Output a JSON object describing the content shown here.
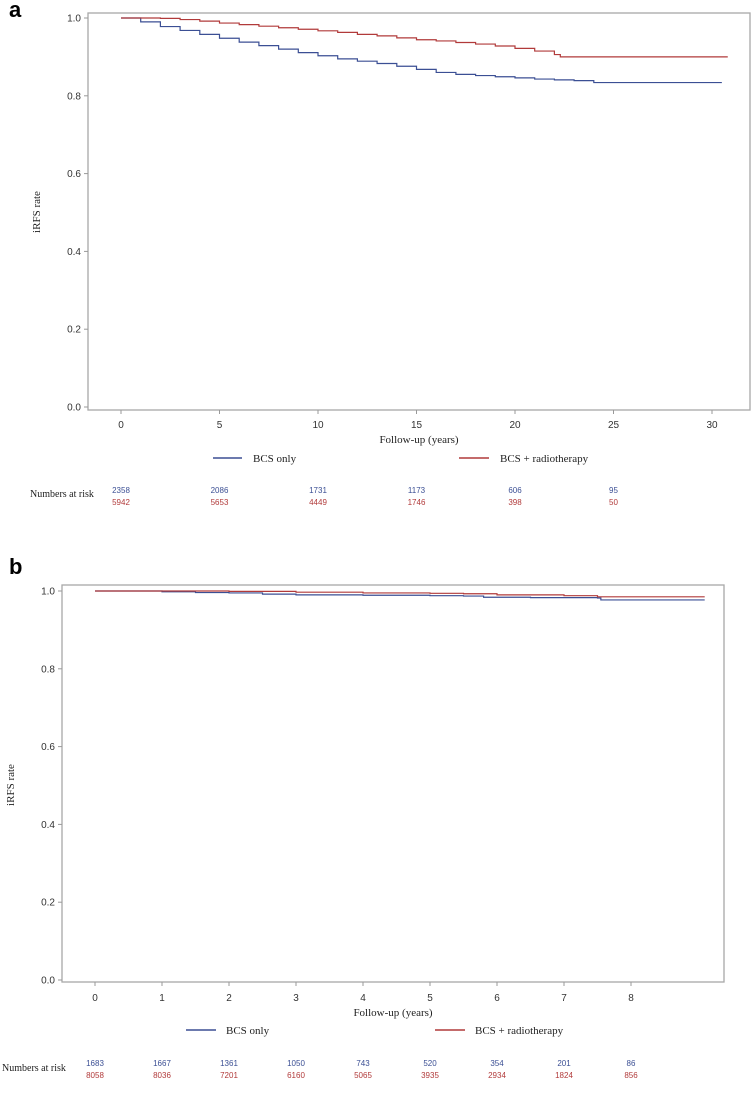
{
  "colors": {
    "bcs_only": "#3b4f94",
    "bcs_radiotherapy": "#b13a3a",
    "frame": "#a8a8a8",
    "tick": "#999999"
  },
  "panels": [
    {
      "label": "a"
    },
    {
      "label": "b"
    }
  ],
  "chart_data": [
    {
      "type": "line",
      "panel": "a",
      "title": "",
      "xlabel": "Follow-up (years)",
      "ylabel": "iRFS rate",
      "xticks": [
        0,
        5,
        10,
        15,
        20,
        25,
        30
      ],
      "yticks": [
        "0.0",
        "0.2",
        "0.4",
        "0.6",
        "0.8",
        "1.0"
      ],
      "ylim": [
        0,
        1
      ],
      "xlim": [
        -1.7,
        32.2
      ],
      "grid": false,
      "legend": [
        "BCS only",
        "BCS + radiotherapy"
      ],
      "legend_position": "bottom",
      "series": [
        {
          "name": "BCS only",
          "x": [
            0,
            1,
            2,
            3,
            4,
            5,
            6,
            7,
            8,
            9,
            10,
            11,
            12,
            13,
            14,
            15,
            16,
            17,
            18,
            19,
            20,
            21,
            22,
            23,
            24,
            25,
            30.5
          ],
          "y": [
            1.0,
            0.99,
            0.978,
            0.968,
            0.958,
            0.948,
            0.938,
            0.929,
            0.92,
            0.911,
            0.903,
            0.895,
            0.889,
            0.883,
            0.876,
            0.868,
            0.86,
            0.855,
            0.852,
            0.849,
            0.846,
            0.843,
            0.841,
            0.839,
            0.834,
            0.834,
            0.834
          ]
        },
        {
          "name": "BCS + radiotherapy",
          "x": [
            0,
            1,
            2,
            3,
            4,
            5,
            6,
            7,
            8,
            9,
            10,
            11,
            12,
            13,
            14,
            15,
            16,
            17,
            18,
            19,
            20,
            21,
            22,
            22.3,
            25,
            30.8
          ],
          "y": [
            1.0,
            1.0,
            0.999,
            0.996,
            0.992,
            0.987,
            0.983,
            0.979,
            0.975,
            0.971,
            0.967,
            0.963,
            0.958,
            0.954,
            0.949,
            0.944,
            0.941,
            0.937,
            0.933,
            0.928,
            0.922,
            0.915,
            0.906,
            0.9,
            0.9,
            0.9
          ]
        }
      ],
      "numbers_at_risk": {
        "label": "Numbers at risk",
        "x": [
          0,
          5,
          10,
          15,
          20,
          25
        ],
        "BCS only": [
          "2358",
          "2086",
          "1731",
          "1173",
          "606",
          "95"
        ],
        "BCS + radiotherapy": [
          "5942",
          "5653",
          "4449",
          "1746",
          "398",
          "50"
        ]
      }
    },
    {
      "type": "line",
      "panel": "b",
      "title": "",
      "xlabel": "Follow-up (years)",
      "ylabel": "iRFS rate",
      "xticks": [
        0,
        1,
        2,
        3,
        4,
        5,
        6,
        7,
        8
      ],
      "yticks": [
        "0.0",
        "0.2",
        "0.4",
        "0.6",
        "0.8",
        "1.0"
      ],
      "ylim": [
        0,
        1
      ],
      "xlim": [
        -0.48,
        9.4
      ],
      "grid": false,
      "legend": [
        "BCS only",
        "BCS + radiotherapy"
      ],
      "legend_position": "bottom",
      "series": [
        {
          "name": "BCS only",
          "x": [
            0,
            1,
            1.5,
            2,
            2.5,
            3,
            4,
            5,
            5.5,
            5.8,
            6.5,
            7.5,
            7.55,
            9.1
          ],
          "y": [
            1.0,
            0.998,
            0.996,
            0.995,
            0.992,
            0.99,
            0.989,
            0.988,
            0.987,
            0.984,
            0.983,
            0.982,
            0.977,
            0.977
          ]
        },
        {
          "name": "BCS + radiotherapy",
          "x": [
            0,
            1,
            2,
            3,
            4,
            5,
            5.5,
            6,
            7,
            7.5,
            9.1
          ],
          "y": [
            1.0,
            1.0,
            0.999,
            0.997,
            0.995,
            0.994,
            0.993,
            0.99,
            0.988,
            0.985,
            0.985
          ]
        }
      ],
      "numbers_at_risk": {
        "label": "Numbers at risk",
        "x": [
          0,
          1,
          2,
          3,
          4,
          5,
          6,
          7,
          8
        ],
        "BCS only": [
          "1683",
          "1667",
          "1361",
          "1050",
          "743",
          "520",
          "354",
          "201",
          "86"
        ],
        "BCS + radiotherapy": [
          "8058",
          "8036",
          "7201",
          "6160",
          "5065",
          "3935",
          "2934",
          "1824",
          "856"
        ]
      }
    }
  ]
}
